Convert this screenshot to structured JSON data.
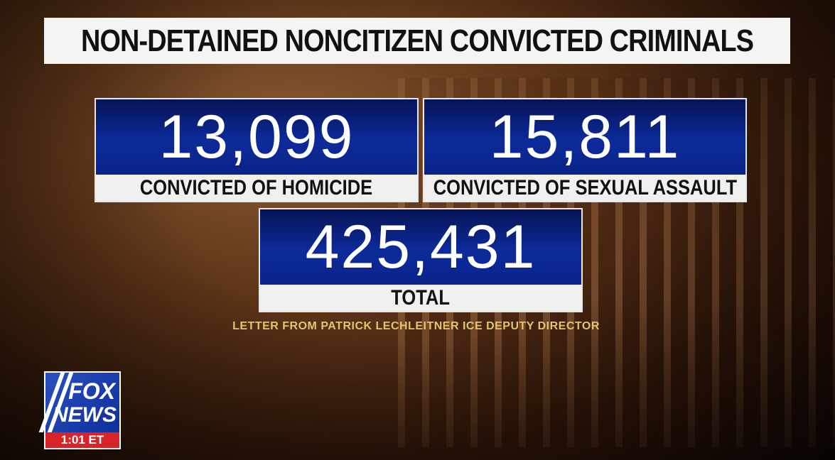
{
  "title": "NON-DETAINED NONCITIZEN CONVICTED CRIMINALS",
  "stats": [
    {
      "value": "13,099",
      "label": "CONVICTED OF HOMICIDE"
    },
    {
      "value": "15,811",
      "label": "CONVICTED OF SEXUAL ASSAULT"
    },
    {
      "value": "425,431",
      "label": "TOTAL"
    }
  ],
  "source": "LETTER FROM PATRICK LECHLEITNER ICE DEPUTY DIRECTOR",
  "logo": {
    "line1": "FOX",
    "line2": "NEWS",
    "time": "1:01 ET"
  },
  "colors": {
    "box_blue": "#0c2a9a",
    "source_gold": "#e3c46a",
    "clock_red": "#d8232a"
  }
}
